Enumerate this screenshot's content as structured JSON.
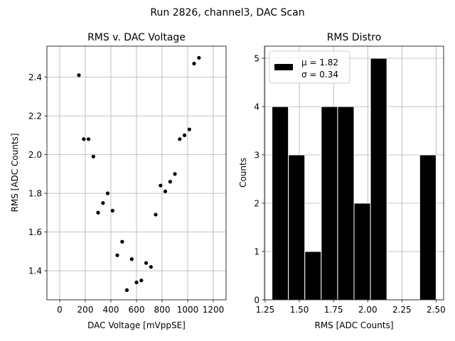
{
  "figure": {
    "suptitle": "Run 2826, channel3, DAC Scan"
  },
  "chart_data": [
    {
      "type": "scatter",
      "title": "RMS v. DAC Voltage",
      "xlabel": "DAC Voltage [mVppSE]",
      "ylabel": "RMS [ADC Counts]",
      "xlim": [
        -100,
        1300
      ],
      "ylim": [
        1.25,
        2.56
      ],
      "xticks": [
        0,
        200,
        400,
        600,
        800,
        1000,
        1200
      ],
      "yticks": [
        1.4,
        1.6,
        1.8,
        2.0,
        2.2,
        2.4
      ],
      "xtick_labels": [
        "0",
        "200",
        "400",
        "600",
        "800",
        "1000",
        "1200"
      ],
      "ytick_labels": [
        "1.4",
        "1.6",
        "1.8",
        "2.0",
        "2.2",
        "2.4"
      ],
      "grid": true,
      "marker_color": "#000000",
      "x": [
        150,
        188,
        225,
        263,
        300,
        338,
        375,
        413,
        450,
        488,
        525,
        563,
        600,
        638,
        675,
        713,
        750,
        788,
        825,
        863,
        900,
        938,
        975,
        1013,
        1050,
        1088
      ],
      "y": [
        2.41,
        2.08,
        2.08,
        1.99,
        1.7,
        1.75,
        1.8,
        1.71,
        1.48,
        1.55,
        1.3,
        1.46,
        1.34,
        1.35,
        1.44,
        1.42,
        1.69,
        1.84,
        1.81,
        1.86,
        1.9,
        2.08,
        2.1,
        2.13,
        2.47,
        2.5
      ]
    },
    {
      "type": "bar",
      "title": "RMS Distro",
      "xlabel": "RMS [ADC Counts]",
      "ylabel": "Counts",
      "xlim": [
        1.245,
        2.555
      ],
      "ylim": [
        0,
        5.25
      ],
      "xticks": [
        1.25,
        1.5,
        1.75,
        2.0,
        2.25,
        2.5
      ],
      "yticks": [
        0,
        1,
        2,
        3,
        4,
        5
      ],
      "xtick_labels": [
        "1.25",
        "1.50",
        "1.75",
        "2.00",
        "2.25",
        "2.50"
      ],
      "ytick_labels": [
        "0",
        "1",
        "2",
        "3",
        "4",
        "5"
      ],
      "grid": true,
      "bar_color": "#000000",
      "bar_edge_color": "#ffffff",
      "bins": [
        {
          "start": 1.3,
          "end": 1.42,
          "count": 4
        },
        {
          "start": 1.42,
          "end": 1.54,
          "count": 3
        },
        {
          "start": 1.54,
          "end": 1.66,
          "count": 1
        },
        {
          "start": 1.66,
          "end": 1.78,
          "count": 4
        },
        {
          "start": 1.78,
          "end": 1.9,
          "count": 4
        },
        {
          "start": 1.9,
          "end": 2.02,
          "count": 2
        },
        {
          "start": 2.02,
          "end": 2.14,
          "count": 5
        },
        {
          "start": 2.14,
          "end": 2.26,
          "count": 0
        },
        {
          "start": 2.26,
          "end": 2.38,
          "count": 0
        },
        {
          "start": 2.38,
          "end": 2.5,
          "count": 3
        }
      ],
      "legend": {
        "placement": "upper-left",
        "line1": "μ = 1.82",
        "line2": "σ = 0.34"
      }
    }
  ]
}
